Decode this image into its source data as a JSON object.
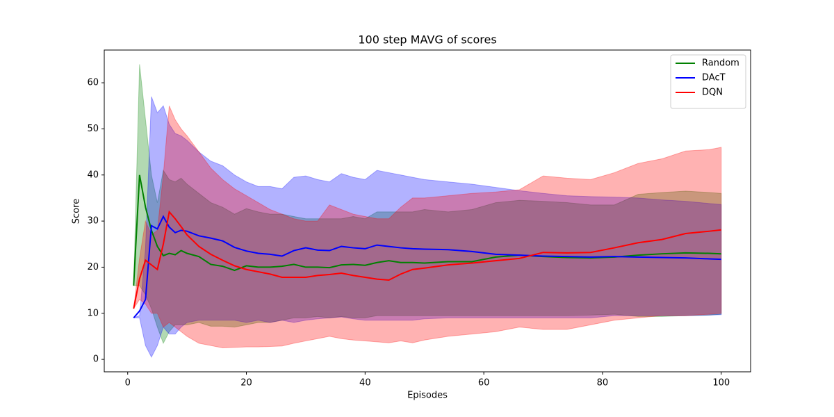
{
  "chart_data": {
    "type": "line_band",
    "title": "100 step MAVG of scores",
    "xlabel": "Episodes",
    "ylabel": "Score",
    "x": [
      1,
      2,
      3,
      4,
      5,
      6,
      7,
      8,
      9,
      10,
      12,
      14,
      16,
      18,
      20,
      22,
      24,
      26,
      28,
      30,
      32,
      34,
      36,
      38,
      40,
      42,
      44,
      46,
      48,
      50,
      54,
      58,
      62,
      66,
      70,
      74,
      78,
      82,
      86,
      90,
      94,
      98,
      100
    ],
    "xlim": [
      -3.95,
      104.95
    ],
    "xticks": [
      0,
      20,
      40,
      60,
      80,
      100
    ],
    "ylim": [
      -2.7,
      67.1
    ],
    "yticks": [
      0,
      10,
      20,
      30,
      40,
      50,
      60
    ],
    "grid": false,
    "legend": "upper right",
    "band_opacity": 0.3,
    "series": [
      {
        "name": "Random",
        "color": "#008000",
        "values": [
          16,
          40,
          33,
          28,
          24.5,
          22.5,
          23,
          22.7,
          23.6,
          23,
          22.3,
          20.6,
          20.2,
          19.3,
          20.3,
          20,
          20,
          20.2,
          20.6,
          20,
          20,
          19.9,
          20.5,
          20.6,
          20.4,
          21,
          21.4,
          21,
          21,
          20.9,
          21.2,
          21.2,
          22.2,
          22.6,
          22.3,
          22.1,
          22,
          22.2,
          22.6,
          22.9,
          23.1,
          23,
          22.9
        ],
        "upper": [
          16,
          64,
          52,
          40,
          34,
          41,
          39,
          38.5,
          39.3,
          38,
          36,
          34,
          33,
          31.5,
          32.7,
          32,
          31.5,
          31.5,
          31,
          30.5,
          30.5,
          30.5,
          30.5,
          31,
          30.5,
          32,
          32,
          32,
          32,
          32.5,
          32,
          32.5,
          34,
          34.5,
          34.3,
          34,
          33.5,
          33.5,
          35.8,
          36.2,
          36.5,
          36.2,
          36
        ],
        "lower": [
          16,
          16,
          14,
          11,
          7,
          3.5,
          6,
          7.5,
          7.5,
          7.5,
          8,
          7.2,
          7.2,
          7,
          7.5,
          8,
          8,
          8.5,
          9,
          9,
          9.3,
          9,
          9.3,
          9,
          9,
          9.5,
          9.5,
          9.5,
          9.5,
          9.5,
          9.5,
          9.5,
          9.5,
          9.5,
          9.5,
          9.5,
          9.6,
          9.8,
          9.3,
          9.3,
          9.5,
          9.6,
          9.8
        ]
      },
      {
        "name": "DAcT",
        "color": "#0000ff",
        "values": [
          9,
          10.5,
          13,
          29,
          28.3,
          31,
          28.7,
          27.5,
          28,
          27.8,
          26.8,
          26.3,
          25.7,
          24.3,
          23.5,
          23,
          22.8,
          22.4,
          23.6,
          24.2,
          23.7,
          23.6,
          24.5,
          24.2,
          24,
          24.8,
          24.5,
          24.2,
          24,
          23.9,
          23.8,
          23.4,
          22.8,
          22.6,
          22.4,
          22.3,
          22.2,
          22.3,
          22.2,
          22.1,
          22,
          21.8,
          21.7
        ],
        "upper": [
          9,
          9.5,
          24,
          57,
          53.5,
          55,
          51,
          49,
          48.5,
          47.5,
          45,
          43,
          42,
          40,
          38.5,
          37.5,
          37.5,
          37,
          39.5,
          39.8,
          39,
          38.5,
          40.3,
          39.5,
          39,
          41,
          40.5,
          40,
          39.5,
          39,
          38.5,
          38,
          37.3,
          36.6,
          36,
          35.5,
          35.3,
          35.2,
          35,
          34.6,
          34.3,
          33.8,
          33.6
        ],
        "lower": [
          9,
          9,
          3,
          0.5,
          3,
          7,
          5.5,
          5.5,
          7,
          8,
          8.5,
          8.5,
          8.5,
          8.5,
          8,
          8.5,
          8,
          8.5,
          8,
          8.5,
          8.8,
          9,
          9.2,
          8.8,
          8.5,
          8.5,
          8.5,
          8.5,
          8.5,
          8.8,
          9,
          9,
          9,
          9,
          9,
          9,
          9,
          9.5,
          9.5,
          9.5,
          9.5,
          9.6,
          9.7
        ]
      },
      {
        "name": "DQN",
        "color": "#ff0000",
        "values": [
          11,
          17.5,
          21.5,
          20.5,
          19.5,
          25,
          32,
          30.5,
          28.8,
          27,
          24.5,
          22.8,
          21.5,
          20.3,
          19.5,
          19,
          18.5,
          17.8,
          17.8,
          17.8,
          18.2,
          18.4,
          18.7,
          18.2,
          17.8,
          17.4,
          17.2,
          18.5,
          19.5,
          19.8,
          20.5,
          20.9,
          21.4,
          21.9,
          23.2,
          23.1,
          23.2,
          24.2,
          25.3,
          26,
          27.3,
          27.8,
          28.1
        ],
        "upper": [
          11,
          22,
          30,
          27,
          28,
          40,
          55,
          52,
          50,
          48.5,
          45,
          41.5,
          39,
          37,
          35.5,
          34,
          32.5,
          31.5,
          30.5,
          30,
          30,
          33.5,
          32.5,
          31.5,
          31,
          30.5,
          30.5,
          33,
          35,
          35,
          35.5,
          36,
          36.3,
          36.8,
          39.8,
          39.3,
          39,
          40.5,
          42.5,
          43.5,
          45.2,
          45.5,
          46
        ],
        "lower": [
          11,
          13,
          12,
          10,
          10,
          7,
          8,
          7,
          6,
          5,
          3.5,
          3,
          2.5,
          2.6,
          2.7,
          2.7,
          2.8,
          2.9,
          3.5,
          4,
          4.5,
          5,
          4.5,
          4.2,
          4,
          3.8,
          3.6,
          4,
          3.6,
          4.2,
          5,
          5.5,
          6,
          7,
          6.5,
          6.5,
          7.5,
          8.5,
          9,
          9.5,
          9.5,
          9.8,
          10
        ]
      }
    ]
  }
}
